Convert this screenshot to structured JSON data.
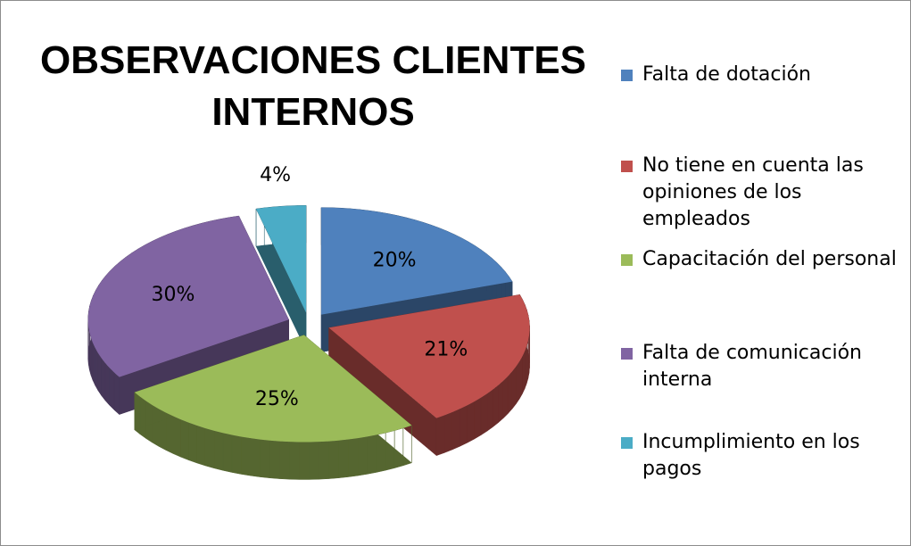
{
  "chart_data": {
    "type": "pie",
    "title": "OBSERVACIONES CLIENTES INTERNOS",
    "categories": [
      "Falta de dotación",
      "No tiene en cuenta las opiniones de los empleados",
      "Capacitación del personal",
      "Falta de comunicación interna",
      "Incumplimiento en los pagos"
    ],
    "values": [
      20,
      21,
      25,
      30,
      4
    ],
    "value_labels": [
      "20%",
      "21%",
      "25%",
      "30%",
      "4%"
    ],
    "colors": [
      "#4f81bd",
      "#c0504d",
      "#9bbb59",
      "#8064a2",
      "#4bacc6"
    ],
    "legend": "right"
  }
}
